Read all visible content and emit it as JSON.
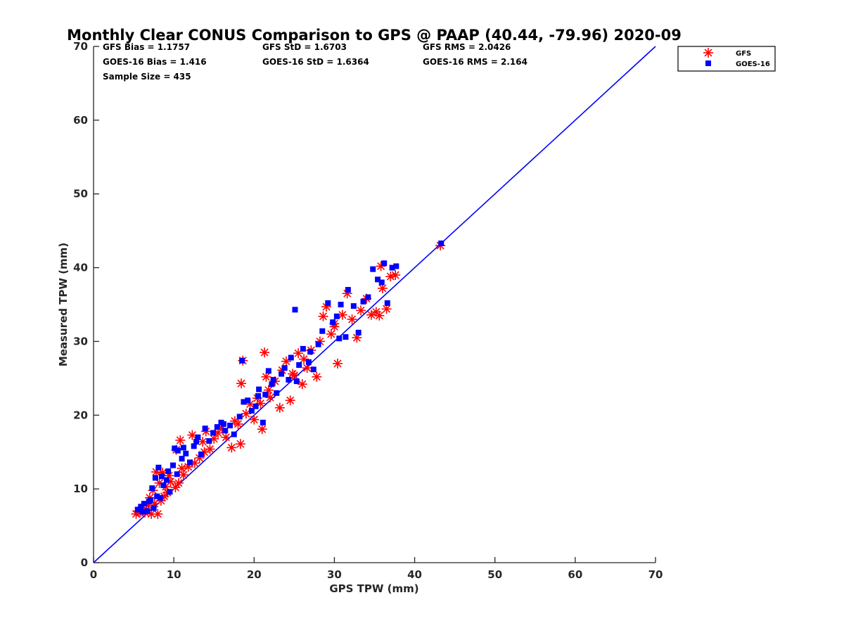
{
  "chart_data": {
    "type": "scatter",
    "title": "Monthly Clear CONUS Comparison to GPS @ PAAP (40.44, -79.96) 2020-09",
    "xlabel": "GPS TPW (mm)",
    "ylabel": "Measured TPW (mm)",
    "xlim": [
      0,
      70
    ],
    "ylim": [
      0,
      70
    ],
    "xticks": [
      "0",
      "10",
      "20",
      "30",
      "40",
      "50",
      "60",
      "70"
    ],
    "yticks": [
      "0",
      "10",
      "20",
      "30",
      "40",
      "50",
      "60",
      "70"
    ],
    "grid": false,
    "legend_position": "top-right",
    "annotations": {
      "gfs_bias": "GFS Bias = 1.1757",
      "gfs_std": "GFS StD = 1.6703",
      "gfs_rms": "GFS RMS = 2.0426",
      "goes_bias": "GOES-16 Bias = 1.416",
      "goes_std": "GOES-16 StD = 1.6364",
      "goes_rms": "GOES-16 RMS = 2.164",
      "sample_size": "Sample Size = 435"
    },
    "reference_line": {
      "x": [
        0,
        70
      ],
      "y": [
        0,
        70
      ],
      "color": "#0000ff"
    },
    "series": [
      {
        "name": "GFS",
        "marker": "asterisk",
        "color": "#ff0000",
        "points": [
          [
            5.3,
            6.6
          ],
          [
            5.6,
            7.0
          ],
          [
            6.0,
            7.4
          ],
          [
            6.4,
            6.8
          ],
          [
            6.8,
            7.8
          ],
          [
            7.2,
            6.6
          ],
          [
            7.6,
            8.0
          ],
          [
            8.0,
            6.6
          ],
          [
            8.4,
            8.4
          ],
          [
            8.8,
            9.0
          ],
          [
            9.2,
            9.5
          ],
          [
            5.8,
            6.8
          ],
          [
            6.6,
            7.2
          ],
          [
            7.0,
            8.8
          ],
          [
            7.4,
            9.8
          ],
          [
            7.8,
            12.3
          ],
          [
            8.2,
            10.8
          ],
          [
            9.0,
            10.3
          ],
          [
            9.6,
            11.0
          ],
          [
            10.2,
            10.2
          ],
          [
            10.6,
            10.8
          ],
          [
            10.3,
            15.3
          ],
          [
            10.8,
            16.6
          ],
          [
            11.2,
            11.9
          ],
          [
            11.8,
            13.0
          ],
          [
            12.3,
            17.3
          ],
          [
            12.6,
            13.5
          ],
          [
            13.2,
            14.2
          ],
          [
            13.6,
            16.4
          ],
          [
            14.0,
            17.8
          ],
          [
            14.5,
            15.4
          ],
          [
            15.0,
            16.8
          ],
          [
            15.5,
            17.6
          ],
          [
            16.0,
            18.2
          ],
          [
            16.5,
            17.0
          ],
          [
            17.2,
            15.6
          ],
          [
            17.6,
            19.2
          ],
          [
            18.0,
            18.8
          ],
          [
            18.3,
            16.1
          ],
          [
            18.4,
            24.3
          ],
          [
            18.6,
            27.4
          ],
          [
            19.0,
            20.2
          ],
          [
            19.5,
            21.5
          ],
          [
            20.0,
            19.4
          ],
          [
            20.4,
            22.3
          ],
          [
            21.0,
            18.1
          ],
          [
            21.3,
            28.5
          ],
          [
            21.5,
            25.2
          ],
          [
            22.0,
            22.4
          ],
          [
            22.6,
            24.6
          ],
          [
            23.2,
            21.0
          ],
          [
            23.5,
            26.1
          ],
          [
            24.0,
            27.3
          ],
          [
            24.5,
            22.0
          ],
          [
            25.0,
            25.4
          ],
          [
            25.5,
            28.4
          ],
          [
            26.0,
            24.2
          ],
          [
            26.6,
            26.4
          ],
          [
            27.1,
            28.8
          ],
          [
            27.8,
            25.2
          ],
          [
            28.2,
            30.0
          ],
          [
            28.6,
            33.4
          ],
          [
            29.0,
            34.7
          ],
          [
            29.6,
            31.0
          ],
          [
            30.0,
            32.4
          ],
          [
            30.4,
            27.0
          ],
          [
            31.0,
            33.6
          ],
          [
            31.6,
            36.5
          ],
          [
            32.2,
            33.0
          ],
          [
            32.8,
            30.5
          ],
          [
            33.3,
            34.2
          ],
          [
            34.0,
            35.8
          ],
          [
            34.6,
            33.6
          ],
          [
            35.2,
            34.0
          ],
          [
            35.6,
            33.5
          ],
          [
            35.8,
            40.2
          ],
          [
            36.0,
            37.2
          ],
          [
            36.5,
            34.4
          ],
          [
            37.0,
            38.8
          ],
          [
            37.6,
            39.0
          ],
          [
            43.2,
            43.0
          ],
          [
            30.0,
            32.0
          ],
          [
            26.2,
            27.6
          ],
          [
            24.8,
            25.6
          ],
          [
            21.8,
            23.4
          ],
          [
            20.8,
            21.6
          ],
          [
            13.8,
            15.0
          ],
          [
            11.0,
            12.8
          ],
          [
            9.4,
            11.8
          ],
          [
            8.6,
            12.2
          ]
        ]
      },
      {
        "name": "GOES-16",
        "marker": "square",
        "color": "#0000ff",
        "points": [
          [
            5.5,
            7.2
          ],
          [
            5.9,
            7.6
          ],
          [
            6.3,
            8.0
          ],
          [
            6.7,
            7.0
          ],
          [
            7.1,
            8.5
          ],
          [
            7.5,
            7.4
          ],
          [
            7.9,
            9.0
          ],
          [
            8.3,
            8.8
          ],
          [
            8.7,
            10.5
          ],
          [
            9.1,
            11.2
          ],
          [
            9.5,
            9.6
          ],
          [
            6.1,
            6.9
          ],
          [
            6.9,
            8.3
          ],
          [
            7.3,
            10.1
          ],
          [
            7.7,
            11.5
          ],
          [
            8.1,
            12.9
          ],
          [
            8.5,
            11.7
          ],
          [
            9.3,
            12.4
          ],
          [
            9.9,
            13.2
          ],
          [
            10.4,
            12.0
          ],
          [
            10.5,
            15.2
          ],
          [
            11.0,
            14.1
          ],
          [
            11.5,
            14.8
          ],
          [
            12.0,
            13.6
          ],
          [
            12.5,
            15.8
          ],
          [
            13.0,
            17.0
          ],
          [
            13.4,
            14.7
          ],
          [
            13.9,
            18.2
          ],
          [
            14.4,
            16.5
          ],
          [
            14.9,
            17.6
          ],
          [
            15.4,
            18.4
          ],
          [
            15.9,
            19.0
          ],
          [
            16.4,
            17.9
          ],
          [
            17.0,
            18.6
          ],
          [
            17.5,
            17.4
          ],
          [
            18.2,
            19.8
          ],
          [
            18.5,
            27.4
          ],
          [
            18.7,
            21.8
          ],
          [
            19.2,
            22.0
          ],
          [
            19.7,
            20.6
          ],
          [
            20.2,
            21.2
          ],
          [
            20.6,
            23.5
          ],
          [
            21.1,
            19.0
          ],
          [
            21.4,
            22.8
          ],
          [
            21.8,
            26.0
          ],
          [
            22.2,
            24.2
          ],
          [
            22.8,
            23.0
          ],
          [
            23.4,
            25.6
          ],
          [
            23.8,
            26.4
          ],
          [
            24.3,
            24.8
          ],
          [
            24.6,
            27.8
          ],
          [
            25.1,
            34.3
          ],
          [
            25.6,
            26.8
          ],
          [
            26.1,
            29.0
          ],
          [
            26.8,
            27.2
          ],
          [
            27.4,
            26.2
          ],
          [
            28.0,
            29.6
          ],
          [
            28.5,
            31.4
          ],
          [
            29.2,
            35.2
          ],
          [
            29.8,
            32.6
          ],
          [
            30.3,
            33.4
          ],
          [
            30.8,
            35.0
          ],
          [
            31.4,
            30.6
          ],
          [
            31.7,
            37.0
          ],
          [
            32.4,
            34.8
          ],
          [
            33.0,
            31.2
          ],
          [
            33.6,
            35.4
          ],
          [
            34.2,
            36.0
          ],
          [
            34.8,
            39.8
          ],
          [
            35.4,
            38.4
          ],
          [
            35.9,
            38.0
          ],
          [
            36.2,
            40.6
          ],
          [
            36.6,
            35.2
          ],
          [
            37.2,
            40.0
          ],
          [
            37.7,
            40.2
          ],
          [
            43.3,
            43.3
          ],
          [
            30.6,
            30.4
          ],
          [
            27.0,
            28.6
          ],
          [
            25.3,
            24.6
          ],
          [
            22.4,
            24.8
          ],
          [
            20.5,
            22.6
          ],
          [
            16.2,
            18.8
          ],
          [
            12.8,
            16.4
          ],
          [
            11.2,
            15.6
          ],
          [
            10.1,
            15.5
          ]
        ]
      }
    ]
  }
}
